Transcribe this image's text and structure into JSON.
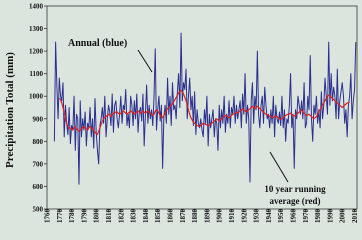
{
  "chart_data": {
    "type": "line",
    "y_label": "Precipitation Total (mm)",
    "annotations": [
      {
        "text": "Annual (blue)"
      },
      {
        "lines": [
          "10 year running",
          "average (red)"
        ]
      }
    ],
    "xlim": [
      1760,
      2012
    ],
    "xticks": [
      1760,
      1770,
      1780,
      1790,
      1800,
      1810,
      1820,
      1830,
      1840,
      1850,
      1860,
      1870,
      1880,
      1890,
      1900,
      1910,
      1920,
      1930,
      1940,
      1950,
      1960,
      1970,
      1980,
      1990,
      2000,
      2010
    ],
    "ylim": [
      500,
      1400
    ],
    "yticks": [
      500,
      600,
      700,
      800,
      900,
      1000,
      1100,
      1200,
      1300,
      1400
    ],
    "x": [
      1766,
      1767,
      1768,
      1769,
      1770,
      1771,
      1772,
      1773,
      1774,
      1775,
      1776,
      1777,
      1778,
      1779,
      1780,
      1781,
      1782,
      1783,
      1784,
      1785,
      1786,
      1787,
      1788,
      1789,
      1790,
      1791,
      1792,
      1793,
      1794,
      1795,
      1796,
      1797,
      1798,
      1799,
      1800,
      1801,
      1802,
      1803,
      1804,
      1805,
      1806,
      1807,
      1808,
      1809,
      1810,
      1811,
      1812,
      1813,
      1814,
      1815,
      1816,
      1817,
      1818,
      1819,
      1820,
      1821,
      1822,
      1823,
      1824,
      1825,
      1826,
      1827,
      1828,
      1829,
      1830,
      1831,
      1832,
      1833,
      1834,
      1835,
      1836,
      1837,
      1838,
      1839,
      1840,
      1841,
      1842,
      1843,
      1844,
      1845,
      1846,
      1847,
      1848,
      1849,
      1850,
      1851,
      1852,
      1853,
      1854,
      1855,
      1856,
      1857,
      1858,
      1859,
      1860,
      1861,
      1862,
      1863,
      1864,
      1865,
      1866,
      1867,
      1868,
      1869,
      1870,
      1871,
      1872,
      1873,
      1874,
      1875,
      1876,
      1877,
      1878,
      1879,
      1880,
      1881,
      1882,
      1883,
      1884,
      1885,
      1886,
      1887,
      1888,
      1889,
      1890,
      1891,
      1892,
      1893,
      1894,
      1895,
      1896,
      1897,
      1898,
      1899,
      1900,
      1901,
      1902,
      1903,
      1904,
      1905,
      1906,
      1907,
      1908,
      1909,
      1910,
      1911,
      1912,
      1913,
      1914,
      1915,
      1916,
      1917,
      1918,
      1919,
      1920,
      1921,
      1922,
      1923,
      1924,
      1925,
      1926,
      1927,
      1928,
      1929,
      1930,
      1931,
      1932,
      1933,
      1934,
      1935,
      1936,
      1937,
      1938,
      1939,
      1940,
      1941,
      1942,
      1943,
      1944,
      1945,
      1946,
      1947,
      1948,
      1949,
      1950,
      1951,
      1952,
      1953,
      1954,
      1955,
      1956,
      1957,
      1958,
      1959,
      1960,
      1961,
      1962,
      1963,
      1964,
      1965,
      1966,
      1967,
      1968,
      1969,
      1970,
      1971,
      1972,
      1973,
      1974,
      1975,
      1976,
      1977,
      1978,
      1979,
      1980,
      1981,
      1982,
      1983,
      1984,
      1985,
      1986,
      1987,
      1988,
      1989,
      1990,
      1991,
      1992,
      1993,
      1994,
      1995,
      1996,
      1997,
      1998,
      1999,
      2000,
      2001,
      2002,
      2003,
      2004,
      2005,
      2006,
      2007,
      2008,
      2009,
      2010,
      2011
    ],
    "series": [
      {
        "color": "#2b2f8f",
        "values": [
          800,
          1240,
          1050,
          900,
          1080,
          1000,
          980,
          1060,
          820,
          960,
          880,
          830,
          950,
          790,
          870,
          850,
          1000,
          760,
          920,
          900,
          610,
          980,
          820,
          900,
          850,
          930,
          780,
          880,
          860,
          950,
          820,
          900,
          770,
          990,
          840,
          760,
          700,
          870,
          900,
          950,
          880,
          1000,
          820,
          900,
          960,
          930,
          870,
          1010,
          840,
          960,
          980,
          900,
          860,
          920,
          1000,
          880,
          960,
          940,
          1030,
          870,
          920,
          860,
          1000,
          960,
          870,
          980,
          900,
          1010,
          840,
          930,
          950,
          890,
          1010,
          780,
          920,
          1050,
          880,
          960,
          900,
          940,
          870,
          1000,
          1210,
          850,
          940,
          1000,
          890,
          960,
          680,
          910,
          960,
          880,
          1080,
          920,
          1000,
          870,
          1060,
          940,
          960,
          900,
          1020,
          1100,
          950,
          1280,
          980,
          1060,
          1030,
          1120,
          900,
          1000,
          1080,
          940,
          1000,
          870,
          1020,
          830,
          940,
          880,
          860,
          900,
          850,
          820,
          940,
          880,
          1000,
          780,
          920,
          860,
          900,
          940,
          820,
          900,
          880,
          760,
          960,
          860,
          940,
          880,
          1000,
          840,
          920,
          880,
          980,
          860,
          950,
          920,
          1000,
          880,
          960,
          900,
          940,
          980,
          860,
          1010,
          920,
          1100,
          880,
          960,
          900,
          620,
          980,
          1060,
          880,
          1000,
          940,
          1200,
          920,
          860,
          960,
          1000,
          880,
          1040,
          960,
          900,
          920,
          860,
          940,
          880,
          1000,
          820,
          960,
          900,
          880,
          930,
          870,
          1000,
          860,
          940,
          800,
          900,
          880,
          960,
          1100,
          860,
          920,
          680,
          940,
          900,
          1000,
          960,
          920,
          980,
          900,
          1060,
          860,
          880,
          1000,
          940,
          1180,
          900,
          800,
          960,
          920,
          1000,
          880,
          940,
          860,
          1020,
          900,
          960,
          1080,
          1000,
          920,
          1240,
          960,
          1100,
          980,
          1040,
          1000,
          900,
          1120,
          900,
          980,
          1020,
          1060,
          1000,
          880,
          940,
          820,
          960,
          1000,
          1100,
          900,
          980,
          1030,
          1240
        ]
      },
      {
        "color": "#e0201b",
        "values": [
          null,
          null,
          null,
          null,
          990,
          985,
          970,
          950,
          930,
          900,
          880,
          865,
          860,
          855,
          855,
          850,
          860,
          865,
          855,
          850,
          845,
          850,
          855,
          860,
          865,
          860,
          855,
          850,
          860,
          865,
          860,
          855,
          850,
          840,
          835,
          830,
          845,
          860,
          875,
          890,
          900,
          905,
          910,
          915,
          920,
          915,
          910,
          920,
          925,
          925,
          930,
          930,
          925,
          920,
          925,
          930,
          935,
          930,
          925,
          920,
          925,
          930,
          935,
          930,
          925,
          920,
          925,
          930,
          935,
          930,
          925,
          930,
          935,
          930,
          925,
          930,
          935,
          930,
          925,
          920,
          915,
          920,
          935,
          940,
          935,
          925,
          915,
          910,
          905,
          915,
          925,
          935,
          945,
          950,
          955,
          960,
          965,
          975,
          985,
          995,
          1005,
          1015,
          1020,
          1025,
          1020,
          1010,
          995,
          980,
          960,
          940,
          920,
          905,
          895,
          885,
          880,
          875,
          870,
          868,
          865,
          870,
          875,
          880,
          878,
          875,
          872,
          870,
          872,
          875,
          880,
          885,
          890,
          895,
          900,
          895,
          890,
          895,
          900,
          905,
          910,
          915,
          912,
          908,
          905,
          910,
          915,
          920,
          922,
          925,
          928,
          925,
          930,
          935,
          940,
          945,
          940,
          935,
          930,
          935,
          940,
          945,
          950,
          955,
          950,
          945,
          950,
          955,
          950,
          945,
          940,
          935,
          930,
          925,
          920,
          918,
          915,
          912,
          910,
          908,
          905,
          910,
          912,
          910,
          905,
          900,
          898,
          900,
          905,
          910,
          915,
          918,
          920,
          922,
          925,
          920,
          915,
          912,
          915,
          920,
          925,
          930,
          935,
          940,
          930,
          925,
          920,
          915,
          918,
          920,
          915,
          910,
          905,
          900,
          905,
          910,
          920,
          930,
          940,
          950,
          960,
          970,
          980,
          990,
          1000,
          1005,
          1000,
          995,
          990,
          985,
          980,
          975,
          970,
          965,
          960,
          955,
          950,
          955,
          960,
          965,
          970,
          970,
          975,
          null,
          null,
          null,
          null,
          null
        ]
      }
    ]
  }
}
